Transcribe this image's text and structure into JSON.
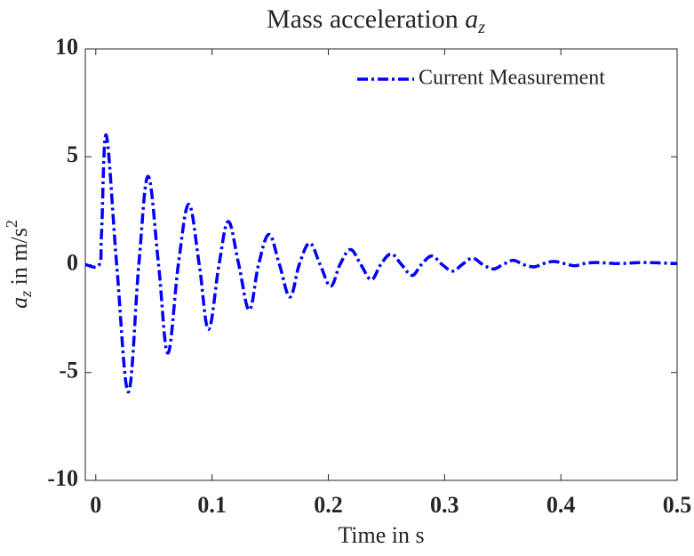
{
  "chart_data": {
    "type": "line",
    "title": "Mass acceleration",
    "title_symbol": {
      "base": "a",
      "sub": "z"
    },
    "xlabel": "Time in s",
    "ylabel": {
      "base": "a",
      "sub": "z",
      "text": "in m/s",
      "sup": "2"
    },
    "x": [
      -0.009,
      0.003,
      0.005,
      0.009,
      0.018,
      0.028,
      0.037,
      0.045,
      0.054,
      0.062,
      0.071,
      0.08,
      0.089,
      0.097,
      0.106,
      0.114,
      0.123,
      0.132,
      0.14,
      0.149,
      0.158,
      0.167,
      0.175,
      0.184,
      0.193,
      0.202,
      0.21,
      0.219,
      0.228,
      0.237,
      0.245,
      0.254,
      0.263,
      0.272,
      0.28,
      0.289,
      0.298,
      0.307,
      0.315,
      0.324,
      0.333,
      0.342,
      0.35,
      0.359,
      0.368,
      0.377,
      0.385,
      0.394,
      0.403,
      0.412,
      0.42,
      0.43,
      0.45,
      0.47,
      0.5
    ],
    "series": [
      {
        "name": "Current Measurement",
        "color": "#0000ff",
        "values": [
          0,
          0,
          1.5,
          6.0,
          0,
          -5.9,
          0,
          4.1,
          0,
          -4.1,
          0,
          2.8,
          0,
          -3.0,
          0,
          2.0,
          0,
          -2.1,
          0,
          1.4,
          0,
          -1.5,
          0,
          1.0,
          0,
          -1.0,
          0,
          0.7,
          0,
          -0.7,
          0,
          0.5,
          0,
          -0.5,
          0,
          0.4,
          0,
          -0.3,
          0,
          0.3,
          0,
          -0.2,
          0,
          0.2,
          0,
          -0.1,
          0.05,
          0.15,
          0.05,
          -0.05,
          0.05,
          0.1,
          0.05,
          0.1,
          0.05
        ]
      }
    ],
    "xlim": [
      -0.009,
      0.5
    ],
    "ylim": [
      -10,
      10
    ],
    "xticks": [
      0,
      0.1,
      0.2,
      0.3,
      0.4,
      0.5
    ],
    "yticks": [
      -10,
      -5,
      0,
      5,
      10
    ],
    "legend": "upper right",
    "grid": false
  }
}
